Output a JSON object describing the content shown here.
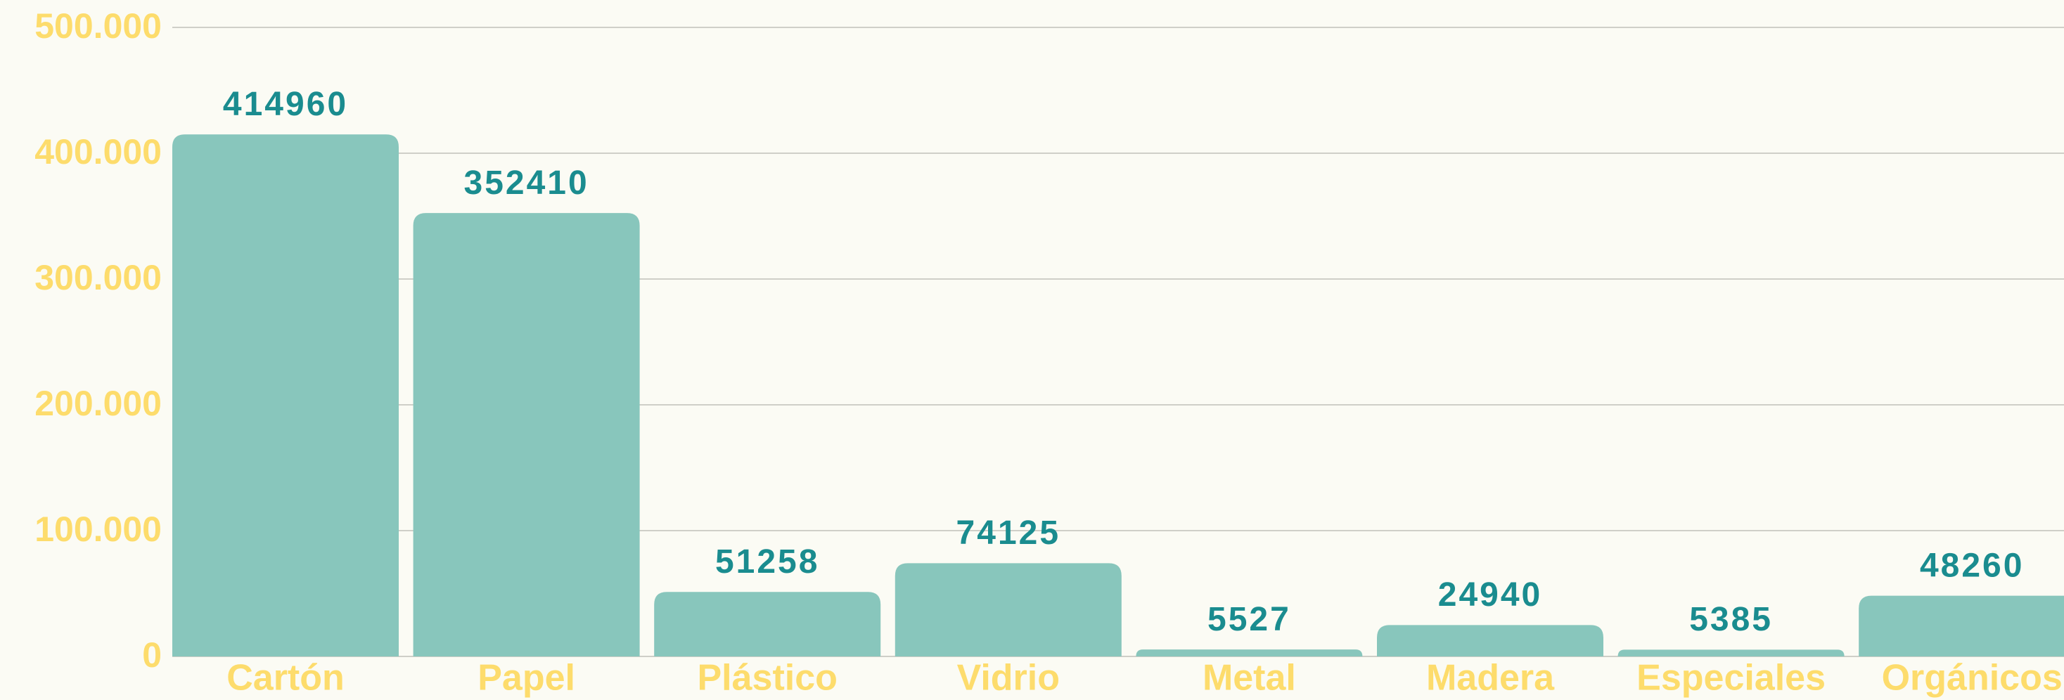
{
  "chart_data": {
    "type": "bar",
    "categories": [
      "Cartón",
      "Papel",
      "Plástico",
      "Vidrio",
      "Metal",
      "Madera",
      "Especiales",
      "Orgánicos"
    ],
    "values": [
      414960,
      352410,
      51258,
      74125,
      5527,
      24940,
      5385,
      48260
    ],
    "color": "#88c6bc",
    "ylim": [
      0,
      500000
    ],
    "yticks": [
      0,
      {
        "value": 100000,
        "label": "100.000"
      },
      {
        "value": 200000,
        "label": "200.000"
      },
      {
        "value": 300000,
        "label": "300.000"
      },
      {
        "value": 400000,
        "label": "400.000"
      },
      {
        "value": 500000,
        "label": "500.000"
      }
    ],
    "grid": true,
    "show_value_labels": true
  }
}
